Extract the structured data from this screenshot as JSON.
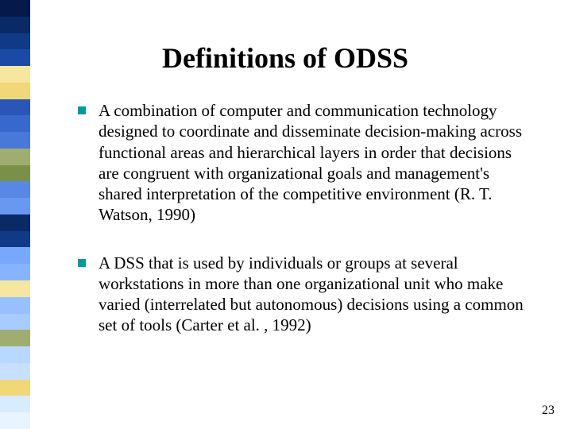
{
  "slide": {
    "title": "Definitions of ODSS",
    "page_number": "23",
    "bullet_marker_color": "#009c9c",
    "bullets": [
      {
        "text": "A combination of computer and communication technology designed to coordinate and disseminate decision-making across functional areas and hierarchical layers in order that decisions are congruent with organizational goals and management's shared interpretation of the competitive environment (R. T. Watson, 1990)"
      },
      {
        "text": "A DSS that is used by individuals or groups at several workstations in more than one organizational unit who make varied (interrelated but autonomous) decisions using a common set of tools (Carter et al. , 1992)"
      }
    ]
  },
  "sidebar": {
    "colors": [
      "#051a4a",
      "#0a2a66",
      "#103a86",
      "#1a4aa6",
      "#f5e7a0",
      "#f0d878",
      "#2a56b8",
      "#3868cc",
      "#4878d8",
      "#9fae70",
      "#7a9048",
      "#5888e4",
      "#6898f0",
      "#0a2a66",
      "#103a86",
      "#78a8fc",
      "#88b4ff",
      "#f5e7a0",
      "#98c0ff",
      "#a8ccff",
      "#9fae70",
      "#b8d8ff",
      "#c8e0ff",
      "#f0d878",
      "#d8ecff",
      "#e8f4ff"
    ]
  }
}
